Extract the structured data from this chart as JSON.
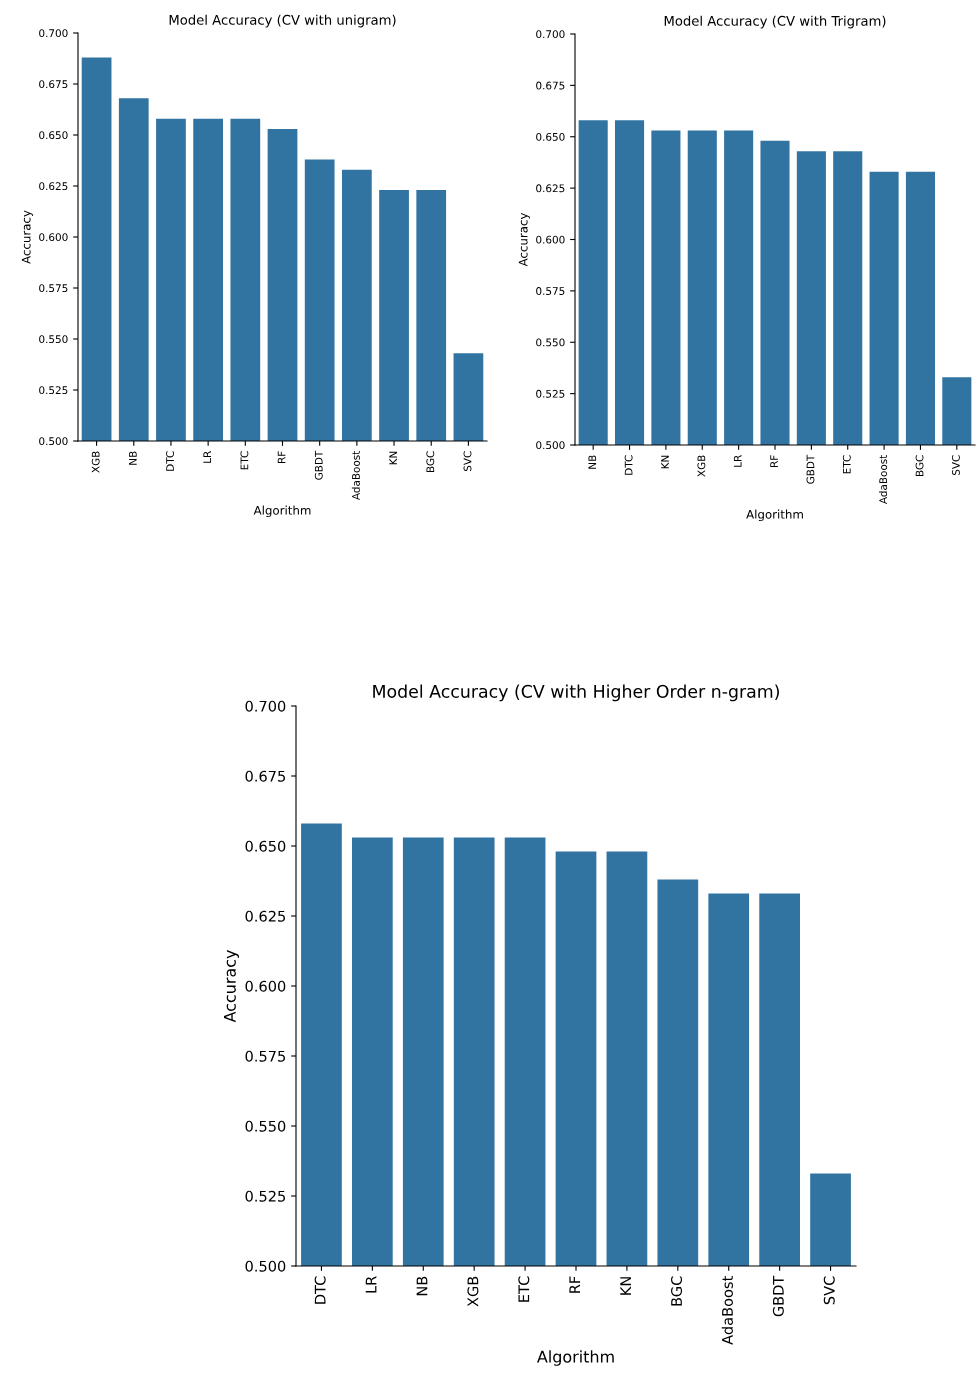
{
  "chart_data": [
    {
      "type": "bar",
      "title": "Model Accuracy (CV with unigram)",
      "xlabel": "Algorithm",
      "ylabel": "Accuracy",
      "categories": [
        "XGB",
        "NB",
        "DTC",
        "LR",
        "ETC",
        "RF",
        "GBDT",
        "AdaBoost",
        "KN",
        "BGC",
        "SVC"
      ],
      "values": [
        0.688,
        0.668,
        0.658,
        0.658,
        0.658,
        0.653,
        0.638,
        0.633,
        0.623,
        0.623,
        0.543
      ],
      "color": "#3274a1",
      "ylim": [
        0.5,
        0.7
      ],
      "yticks": [
        {
          "value": 0.5,
          "label": "0.500"
        },
        {
          "value": 0.525,
          "label": "0.525"
        },
        {
          "value": 0.55,
          "label": "0.550"
        },
        {
          "value": 0.575,
          "label": "0.575"
        },
        {
          "value": 0.6,
          "label": "0.600"
        },
        {
          "value": 0.625,
          "label": "0.625"
        },
        {
          "value": 0.65,
          "label": "0.650"
        },
        {
          "value": 0.675,
          "label": "0.675"
        },
        {
          "value": 0.7,
          "label": "0.700"
        }
      ]
    },
    {
      "type": "bar",
      "title": "Model Accuracy (CV with Trigram)",
      "xlabel": "Algorithm",
      "ylabel": "Accuracy",
      "categories": [
        "NB",
        "DTC",
        "KN",
        "XGB",
        "LR",
        "RF",
        "GBDT",
        "ETC",
        "AdaBoost",
        "BGC",
        "SVC"
      ],
      "values": [
        0.658,
        0.658,
        0.653,
        0.653,
        0.653,
        0.648,
        0.643,
        0.643,
        0.633,
        0.633,
        0.533
      ],
      "color": "#3274a1",
      "ylim": [
        0.5,
        0.7
      ],
      "yticks": [
        {
          "value": 0.5,
          "label": "0.500"
        },
        {
          "value": 0.525,
          "label": "0.525"
        },
        {
          "value": 0.55,
          "label": "0.550"
        },
        {
          "value": 0.575,
          "label": "0.575"
        },
        {
          "value": 0.6,
          "label": "0.600"
        },
        {
          "value": 0.625,
          "label": "0.625"
        },
        {
          "value": 0.65,
          "label": "0.650"
        },
        {
          "value": 0.675,
          "label": "0.675"
        },
        {
          "value": 0.7,
          "label": "0.700"
        }
      ]
    },
    {
      "type": "bar",
      "title": "Model Accuracy (CV with Higher Order n-gram)",
      "xlabel": "Algorithm",
      "ylabel": "Accuracy",
      "categories": [
        "DTC",
        "LR",
        "NB",
        "XGB",
        "ETC",
        "RF",
        "KN",
        "BGC",
        "AdaBoost",
        "GBDT",
        "SVC"
      ],
      "values": [
        0.658,
        0.653,
        0.653,
        0.653,
        0.653,
        0.648,
        0.648,
        0.638,
        0.633,
        0.633,
        0.533
      ],
      "color": "#3274a1",
      "ylim": [
        0.5,
        0.7
      ],
      "yticks": [
        {
          "value": 0.5,
          "label": "0.500"
        },
        {
          "value": 0.525,
          "label": "0.525"
        },
        {
          "value": 0.55,
          "label": "0.550"
        },
        {
          "value": 0.575,
          "label": "0.575"
        },
        {
          "value": 0.6,
          "label": "0.600"
        },
        {
          "value": 0.625,
          "label": "0.625"
        },
        {
          "value": 0.65,
          "label": "0.650"
        },
        {
          "value": 0.675,
          "label": "0.675"
        },
        {
          "value": 0.7,
          "label": "0.700"
        }
      ]
    }
  ]
}
